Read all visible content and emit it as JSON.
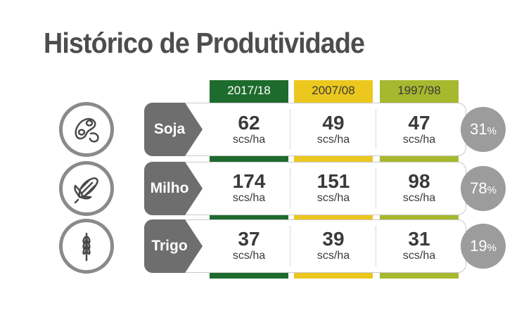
{
  "title": "Histórico de Produtividade",
  "columns": [
    {
      "label": "2017/18",
      "color": "#1e6b2e"
    },
    {
      "label": "2007/08",
      "color": "#ecc71e"
    },
    {
      "label": "1997/98",
      "color": "#a6b82e"
    }
  ],
  "unit": "scs/ha",
  "pct_sign": "%",
  "rows": [
    {
      "crop": "Soja",
      "icon": "soybean-icon",
      "values": [
        "62",
        "49",
        "47"
      ],
      "pct": "31"
    },
    {
      "crop": "Milho",
      "icon": "corn-icon",
      "values": [
        "174",
        "151",
        "98"
      ],
      "pct": "78"
    },
    {
      "crop": "Trigo",
      "icon": "wheat-icon",
      "values": [
        "37",
        "39",
        "31"
      ],
      "pct": "19"
    }
  ],
  "colors": {
    "badge": "#6e6e6e",
    "circle_border": "#8a8a8a",
    "pct_circle": "#9c9c9c",
    "title": "#4d4d4d"
  }
}
